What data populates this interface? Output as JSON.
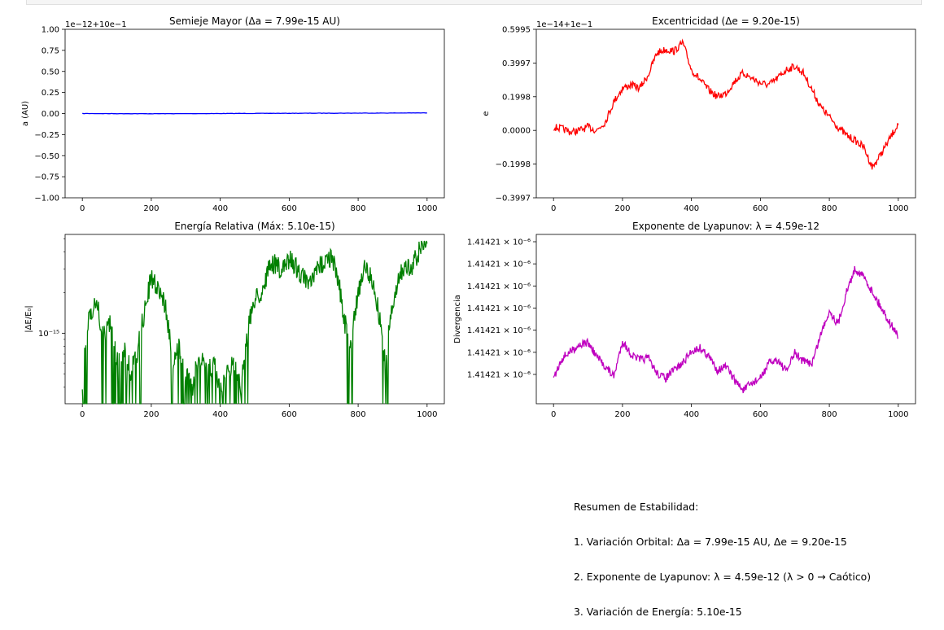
{
  "chart_data": [
    {
      "type": "line",
      "title": "Semieje Mayor (Δa = 7.99e-15 AU)",
      "ylabel": "a (AU)",
      "offset_label": "1e−12+10e−1",
      "x_ticks": [
        "0",
        "200",
        "400",
        "600",
        "800",
        "1000"
      ],
      "y_ticks": [
        "1.00",
        "0.75",
        "0.50",
        "0.25",
        "0.00",
        "−0.25",
        "−0.50",
        "−0.75",
        "−1.00"
      ],
      "xlim": [
        -50,
        1050
      ],
      "ylim": [
        -1.0,
        1.0
      ],
      "color": "#0000ff",
      "series": [
        {
          "x": [
            0,
            100,
            200,
            300,
            400,
            500,
            600,
            700,
            800,
            900,
            1000
          ],
          "y": [
            0.0,
            -0.001,
            -0.002,
            -0.001,
            0.0,
            0.002,
            0.003,
            0.004,
            0.005,
            0.006,
            0.008
          ]
        }
      ]
    },
    {
      "type": "line",
      "title": "Excentricidad (Δe = 9.20e-15)",
      "ylabel": "e",
      "offset_label": "1e−14+1e−1",
      "x_ticks": [
        "0",
        "200",
        "400",
        "600",
        "800",
        "1000"
      ],
      "y_ticks": [
        "0.5995",
        "0.3997",
        "0.1998",
        "0.0000",
        "−0.1998",
        "−0.3997"
      ],
      "xlim": [
        -50,
        1050
      ],
      "ylim": [
        -0.3997,
        0.5995
      ],
      "color": "#ff0000",
      "series": [
        {
          "x": [
            0,
            25,
            50,
            75,
            100,
            125,
            150,
            175,
            200,
            225,
            250,
            275,
            300,
            325,
            350,
            375,
            400,
            425,
            450,
            475,
            500,
            525,
            550,
            575,
            600,
            625,
            650,
            675,
            700,
            725,
            750,
            775,
            800,
            825,
            850,
            875,
            900,
            925,
            950,
            975,
            1000
          ],
          "y": [
            0.02,
            0.01,
            -0.01,
            0.0,
            0.02,
            0.0,
            0.05,
            0.17,
            0.25,
            0.27,
            0.25,
            0.33,
            0.46,
            0.48,
            0.47,
            0.52,
            0.36,
            0.3,
            0.24,
            0.2,
            0.22,
            0.29,
            0.34,
            0.31,
            0.28,
            0.27,
            0.31,
            0.36,
            0.38,
            0.34,
            0.24,
            0.14,
            0.08,
            0.02,
            -0.03,
            -0.06,
            -0.1,
            -0.22,
            -0.14,
            -0.05,
            0.04
          ]
        }
      ]
    },
    {
      "type": "line",
      "title": "Energía Relativa (Máx: 5.10e-15)",
      "ylabel": "|ΔE/E₀|",
      "y_scale": "log",
      "x_ticks": [
        "0",
        "200",
        "400",
        "600",
        "800",
        "1000"
      ],
      "y_tick_label": "10⁻¹⁵",
      "xlim": [
        -50,
        1050
      ],
      "ylim": [
        3e-16,
        5.4e-15
      ],
      "color": "#008000",
      "series": [
        {
          "x": [
            0,
            20,
            40,
            60,
            80,
            100,
            120,
            140,
            160,
            180,
            200,
            220,
            240,
            260,
            280,
            300,
            320,
            340,
            360,
            380,
            400,
            420,
            440,
            460,
            480,
            500,
            520,
            540,
            560,
            580,
            600,
            620,
            640,
            660,
            680,
            700,
            720,
            740,
            760,
            780,
            800,
            820,
            840,
            860,
            880,
            900,
            920,
            940,
            960,
            980,
            1000
          ],
          "y": [
            3.2e-16,
            1.4e-15,
            1.7e-15,
            9e-16,
            1.2e-15,
            6e-16,
            8e-16,
            5e-16,
            7e-16,
            1.4e-15,
            2.5e-15,
            2.2e-15,
            1.6e-15,
            6e-16,
            8e-16,
            5e-16,
            4e-16,
            7e-16,
            5e-16,
            6e-16,
            4e-16,
            5e-16,
            6e-16,
            4e-16,
            1e-15,
            1.8e-15,
            2e-15,
            2.9e-15,
            3.3e-15,
            2.8e-15,
            3.6e-15,
            3.1e-15,
            2.6e-15,
            2.2e-15,
            2.9e-15,
            3.4e-15,
            3.7e-15,
            2.6e-15,
            1.2e-15,
            8e-16,
            2e-15,
            3.2e-15,
            2.5e-15,
            1.4e-15,
            5e-16,
            1.6e-15,
            2.8e-15,
            3e-15,
            3.2e-15,
            4.2e-15,
            5.1e-15
          ]
        }
      ]
    },
    {
      "type": "line",
      "title": "Exponente de Lyapunov: λ = 4.59e-12",
      "ylabel": "Divergencia",
      "y_tick_labels": [
        "1.41421 × 10⁻⁶",
        "1.41421 × 10⁻⁶",
        "1.41421 × 10⁻⁶",
        "1.41421 × 10⁻⁶",
        "1.41421 × 10⁻⁶",
        "1.41421 × 10⁻⁶",
        "1.41421 × 10⁻⁶"
      ],
      "x_ticks": [
        "0",
        "200",
        "400",
        "600",
        "800",
        "1000"
      ],
      "xlim": [
        -50,
        1050
      ],
      "ylim": [
        0,
        1
      ],
      "color": "#bf00bf",
      "series": [
        {
          "x": [
            0,
            25,
            50,
            75,
            100,
            125,
            150,
            175,
            200,
            225,
            250,
            275,
            300,
            325,
            350,
            375,
            400,
            425,
            450,
            475,
            500,
            525,
            550,
            575,
            600,
            625,
            650,
            675,
            700,
            725,
            750,
            775,
            800,
            825,
            850,
            875,
            900,
            925,
            950,
            975,
            1000
          ],
          "y": [
            0.15,
            0.27,
            0.31,
            0.35,
            0.36,
            0.28,
            0.22,
            0.16,
            0.37,
            0.29,
            0.26,
            0.27,
            0.18,
            0.15,
            0.2,
            0.24,
            0.31,
            0.33,
            0.28,
            0.2,
            0.22,
            0.14,
            0.08,
            0.12,
            0.15,
            0.24,
            0.26,
            0.19,
            0.3,
            0.25,
            0.24,
            0.41,
            0.55,
            0.47,
            0.66,
            0.8,
            0.75,
            0.66,
            0.57,
            0.48,
            0.4
          ]
        }
      ]
    }
  ],
  "summary": {
    "title": "Resumen de Estabilidad:",
    "lines": [
      "1. Variación Orbital: Δa = 7.99e-15 AU, Δe = 9.20e-15",
      "2. Exponente de Lyapunov: λ = 4.59e-12 (λ > 0 → Caótico)",
      "3. Variación de Energía: 5.10e-15"
    ]
  }
}
